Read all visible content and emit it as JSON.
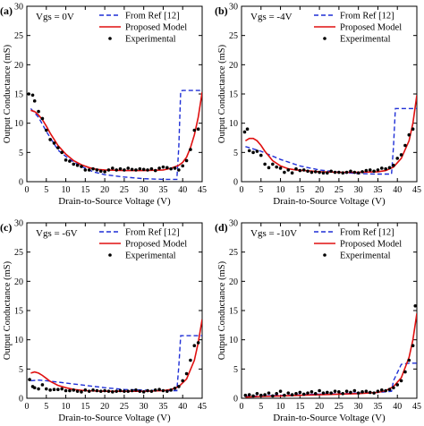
{
  "figure": {
    "shared_xlabel": "Drain-to-Source Voltage (V)",
    "shared_ylabel": "Output Conductance (mS)",
    "legend_labels": [
      "From Ref [12]",
      "Proposed Model",
      "Experimental"
    ],
    "series_colors": {
      "ref": "#1f2fd6",
      "model": "#e01010",
      "exp": "#000000"
    }
  },
  "chart_data": [
    {
      "type": "line",
      "panel_label": "(a)",
      "annotation": "Vgs = 0V",
      "xlabel": "Drain-to-Source Voltage (V)",
      "ylabel": "Output Conductance (mS)",
      "xlim": [
        0,
        45
      ],
      "ylim": [
        0,
        30
      ],
      "xticks": [
        "0",
        "5",
        "10",
        "15",
        "20",
        "25",
        "30",
        "35",
        "40",
        "45"
      ],
      "yticks": [
        "0",
        "5",
        "10",
        "15",
        "20",
        "25",
        "30"
      ],
      "legend_position": "top-right",
      "series": [
        {
          "name": "From Ref [12]",
          "style": "dashed",
          "x": [
            1,
            3,
            5,
            8,
            11,
            14,
            17,
            20,
            25,
            30,
            35,
            38.5,
            39,
            39.5,
            40,
            45
          ],
          "y": [
            12.5,
            11,
            8.6,
            5.4,
            3.8,
            2.6,
            1.7,
            1.2,
            0.8,
            0.5,
            0.4,
            0.4,
            6,
            15.5,
            15.6,
            15.6
          ]
        },
        {
          "name": "Proposed Model",
          "style": "solid",
          "x": [
            1,
            2,
            3,
            4,
            5,
            6,
            8,
            10,
            12,
            14,
            16,
            18,
            20,
            25,
            30,
            35,
            37,
            39,
            40,
            41,
            42,
            43,
            44,
            45
          ],
          "y": [
            12.2,
            12,
            11.4,
            10.6,
            9.5,
            8.3,
            6.2,
            4.7,
            3.6,
            2.9,
            2.4,
            2.1,
            2,
            1.9,
            1.9,
            2,
            2.3,
            2.8,
            3.3,
            4.2,
            5.8,
            8,
            11,
            15.3
          ]
        },
        {
          "name": "Experimental",
          "style": "points",
          "x": [
            0.5,
            1.5,
            2,
            3,
            4,
            5,
            6,
            7,
            8,
            9,
            10,
            11,
            12,
            13,
            14,
            15,
            16,
            17,
            18,
            19,
            20,
            21,
            22,
            23,
            24,
            25,
            26,
            27,
            28,
            29,
            30,
            31,
            32,
            33,
            34,
            35,
            36,
            37,
            38,
            39,
            40,
            41,
            42,
            43,
            44
          ],
          "y": [
            15,
            14.8,
            13.8,
            12,
            10.8,
            8.8,
            7.2,
            6.6,
            5.8,
            5,
            3.7,
            3.5,
            3,
            2.8,
            2.6,
            2,
            2,
            2.2,
            2,
            1.8,
            1.7,
            2,
            2.3,
            2,
            2.2,
            2,
            2.3,
            2.1,
            2,
            2.2,
            2.1,
            2,
            2.2,
            1.9,
            2.3,
            2.5,
            2.4,
            2.2,
            2.3,
            2,
            2.7,
            3.6,
            5.5,
            8.8,
            9
          ]
        }
      ]
    },
    {
      "type": "line",
      "panel_label": "(b)",
      "annotation": "Vgs = -4V",
      "xlabel": "Drain-to-Source Voltage (V)",
      "ylabel": "Output Conductance (mS)",
      "xlim": [
        0,
        45
      ],
      "ylim": [
        0,
        30
      ],
      "xticks": [
        "0",
        "5",
        "10",
        "15",
        "20",
        "25",
        "30",
        "35",
        "40",
        "45"
      ],
      "yticks": [
        "0",
        "5",
        "10",
        "15",
        "20",
        "25",
        "30"
      ],
      "legend_position": "top-right",
      "series": [
        {
          "name": "From Ref [12]",
          "style": "dashed",
          "x": [
            1,
            5,
            10,
            15,
            20,
            25,
            30,
            35,
            38.5,
            39,
            39.5,
            41,
            45
          ],
          "y": [
            6,
            5.2,
            3.8,
            2.7,
            2,
            1.6,
            1.4,
            1.3,
            1.3,
            6,
            12.5,
            12.5,
            12.5
          ]
        },
        {
          "name": "Proposed Model",
          "style": "solid",
          "x": [
            1,
            2,
            3,
            4,
            5,
            6,
            8,
            10,
            12,
            14,
            16,
            18,
            20,
            25,
            30,
            35,
            37,
            39,
            41,
            43,
            44,
            45
          ],
          "y": [
            7,
            7.4,
            7.4,
            7,
            6.2,
            5.2,
            3.6,
            2.7,
            2.2,
            2,
            1.9,
            1.8,
            1.7,
            1.6,
            1.6,
            1.7,
            1.9,
            2.5,
            4,
            7,
            10,
            14.8
          ]
        },
        {
          "name": "Experimental",
          "style": "points",
          "x": [
            0.8,
            1.5,
            2,
            3,
            4,
            5,
            6,
            7,
            8,
            9,
            10,
            11,
            12,
            13,
            14,
            15,
            16,
            17,
            18,
            19,
            20,
            21,
            22,
            23,
            24,
            25,
            26,
            27,
            28,
            29,
            30,
            31,
            32,
            33,
            34,
            35,
            36,
            37,
            38,
            39,
            40,
            41,
            42,
            43,
            44
          ],
          "y": [
            8.5,
            9,
            5.3,
            5,
            5.2,
            4.5,
            3,
            2.4,
            3,
            2.5,
            2.3,
            1.6,
            2,
            1.5,
            2.2,
            1.9,
            2,
            1.8,
            1.6,
            1.7,
            1.6,
            1.5,
            1.5,
            1.8,
            1.6,
            1.6,
            1.5,
            1.6,
            1.8,
            1.6,
            1.5,
            1.7,
            1.9,
            2,
            1.8,
            2,
            2.3,
            2.2,
            2.4,
            2.8,
            4,
            4.6,
            6.2,
            8,
            9
          ]
        }
      ]
    },
    {
      "type": "line",
      "panel_label": "(c)",
      "annotation": "Vgs = -6V",
      "xlabel": "Drain-to-Source Voltage (V)",
      "ylabel": "Output Conductance (mS)",
      "xlim": [
        0,
        45
      ],
      "ylim": [
        0,
        30
      ],
      "xticks": [
        "0",
        "5",
        "10",
        "15",
        "20",
        "25",
        "30",
        "35",
        "40",
        "45"
      ],
      "yticks": [
        "0",
        "5",
        "10",
        "15",
        "20",
        "25",
        "30"
      ],
      "legend_position": "top-right",
      "series": [
        {
          "name": "From Ref [12]",
          "style": "dashed",
          "x": [
            1,
            3,
            5,
            10,
            15,
            20,
            25,
            30,
            35,
            38.5,
            39,
            39.5,
            41,
            45
          ],
          "y": [
            3,
            3.1,
            3,
            2.6,
            2.2,
            1.8,
            1.5,
            1.4,
            1.3,
            1.3,
            5.5,
            10.7,
            10.7,
            10.7
          ]
        },
        {
          "name": "Proposed Model",
          "style": "solid",
          "x": [
            1,
            2,
            3,
            4,
            5,
            6,
            8,
            10,
            12,
            15,
            20,
            25,
            30,
            35,
            37,
            39,
            41,
            43,
            44,
            45
          ],
          "y": [
            4.3,
            4.5,
            4.3,
            3.9,
            3.4,
            2.9,
            2.2,
            1.8,
            1.5,
            1.3,
            1.2,
            1.2,
            1.2,
            1.3,
            1.5,
            2,
            3.3,
            6.5,
            9.5,
            13.5
          ]
        },
        {
          "name": "Experimental",
          "style": "points",
          "x": [
            0.7,
            1.5,
            2,
            3,
            4,
            5,
            6,
            7,
            8,
            9,
            10,
            11,
            12,
            13,
            14,
            15,
            16,
            17,
            18,
            19,
            20,
            21,
            22,
            23,
            24,
            25,
            26,
            27,
            28,
            29,
            30,
            31,
            32,
            33,
            34,
            35,
            36,
            37,
            38,
            39,
            40,
            41,
            42,
            43,
            44
          ],
          "y": [
            3.2,
            2,
            1.8,
            1.6,
            2.3,
            1.6,
            1.4,
            1.5,
            1.5,
            1.6,
            1.3,
            1.3,
            1.4,
            1.2,
            1.1,
            1.4,
            1.2,
            1.4,
            1.3,
            1.2,
            1.3,
            1.2,
            1.1,
            1.2,
            1.3,
            1.2,
            1.2,
            1.3,
            1.4,
            1.2,
            1.1,
            1.3,
            1.2,
            1.4,
            1.5,
            1.3,
            1.2,
            1.4,
            1.7,
            2,
            3,
            4.2,
            6.5,
            9,
            9.5
          ]
        }
      ]
    },
    {
      "type": "line",
      "panel_label": "(d)",
      "annotation": "Vgs = -10V",
      "xlabel": "Drain-to-Source Voltage (V)",
      "ylabel": "Output Conductance (mS)",
      "xlim": [
        0,
        45
      ],
      "ylim": [
        0,
        30
      ],
      "xticks": [
        "0",
        "5",
        "10",
        "15",
        "20",
        "25",
        "30",
        "35",
        "40",
        "45"
      ],
      "yticks": [
        "0",
        "5",
        "10",
        "15",
        "20",
        "25",
        "30"
      ],
      "legend_position": "top-right",
      "series": [
        {
          "name": "From Ref [12]",
          "style": "dashed",
          "x": [
            1,
            5,
            10,
            15,
            20,
            25,
            30,
            35,
            37,
            38.5,
            39,
            41,
            43,
            45
          ],
          "y": [
            0.3,
            0.4,
            0.5,
            0.6,
            0.7,
            0.8,
            0.9,
            1,
            1.1,
            1.2,
            3,
            5.8,
            6,
            6
          ]
        },
        {
          "name": "Proposed Model",
          "style": "solid",
          "x": [
            1,
            5,
            10,
            15,
            20,
            25,
            30,
            35,
            37,
            39,
            41,
            43,
            44,
            45
          ],
          "y": [
            0.2,
            0.3,
            0.4,
            0.5,
            0.6,
            0.7,
            0.8,
            1,
            1.3,
            2,
            3.5,
            7,
            10,
            14.5
          ]
        },
        {
          "name": "Experimental",
          "style": "points",
          "x": [
            1,
            2,
            3,
            4,
            5,
            6,
            7,
            8,
            9,
            10,
            11,
            12,
            13,
            14,
            15,
            16,
            17,
            18,
            19,
            20,
            21,
            22,
            23,
            24,
            25,
            26,
            27,
            28,
            29,
            30,
            31,
            32,
            33,
            34,
            35,
            36,
            37,
            38,
            39,
            40,
            41,
            42,
            43,
            44,
            44.6
          ],
          "y": [
            0.5,
            0.6,
            0.4,
            0.8,
            0.5,
            0.6,
            0.9,
            0.4,
            0.8,
            1.2,
            0.5,
            0.9,
            0.6,
            0.8,
            1,
            0.7,
            0.9,
            1.1,
            0.8,
            1.3,
            0.9,
            1,
            0.9,
            1.2,
            1.1,
            0.8,
            1.2,
            1,
            1.3,
            0.9,
            1.1,
            1.2,
            1,
            0.9,
            1.2,
            1.4,
            1.3,
            1.5,
            1.8,
            2.3,
            3,
            4.5,
            6.5,
            9,
            15.8
          ]
        }
      ]
    }
  ]
}
